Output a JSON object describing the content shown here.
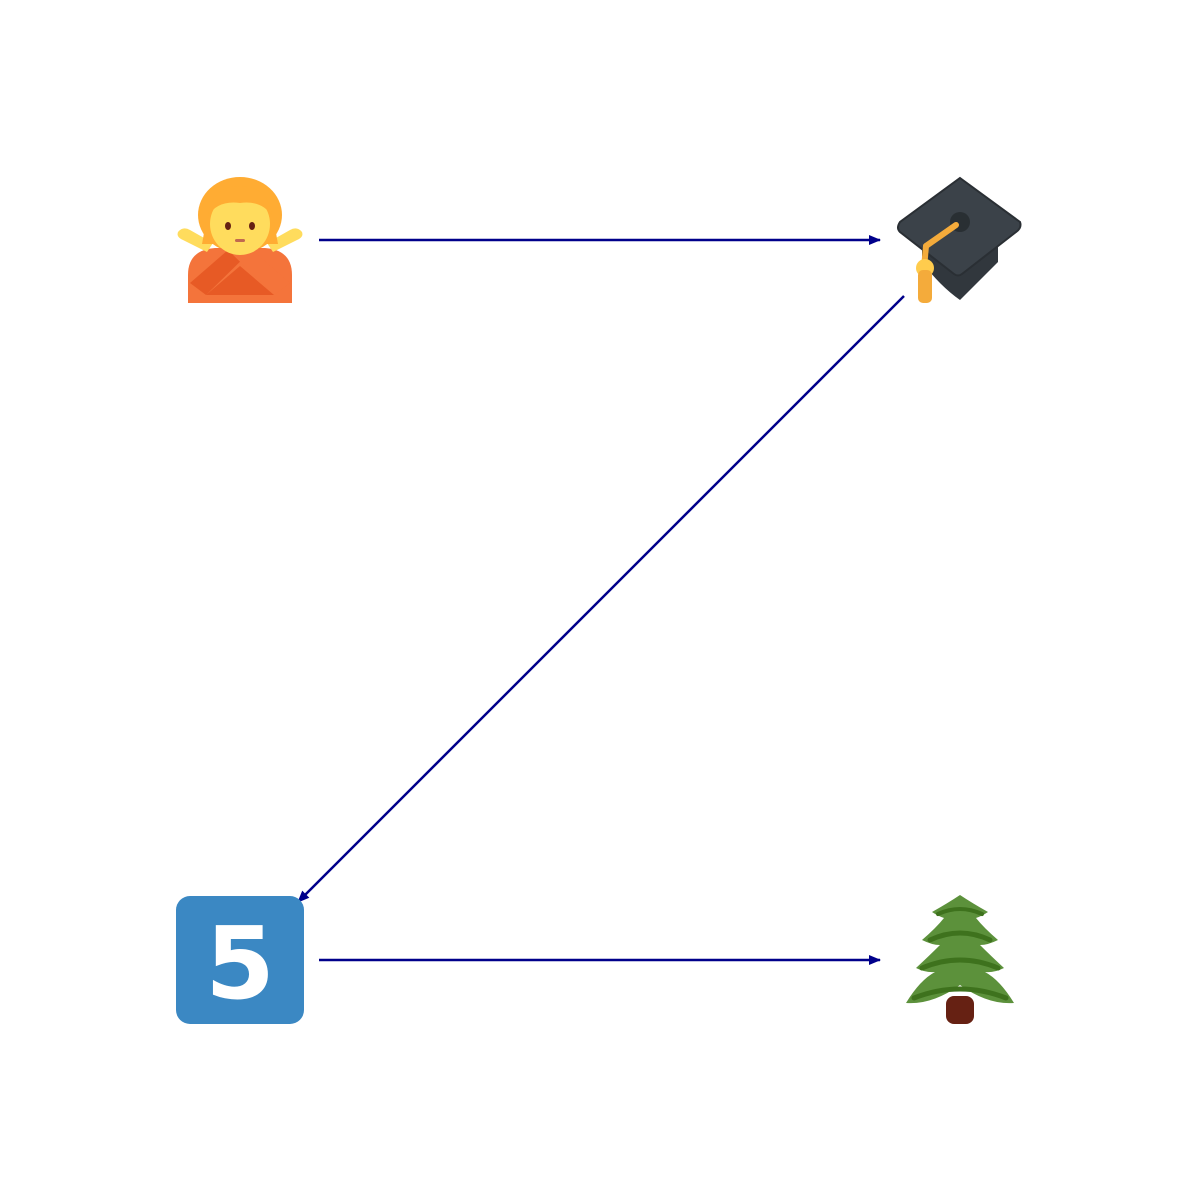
{
  "diagram": {
    "nodes": [
      {
        "id": "no-gesture",
        "icon": "person-gesturing-no-icon"
      },
      {
        "id": "graduation-cap",
        "icon": "graduation-cap-icon"
      },
      {
        "id": "keycap-five",
        "icon": "keycap-5-icon",
        "label": "5"
      },
      {
        "id": "evergreen-tree",
        "icon": "evergreen-tree-icon"
      }
    ],
    "edges": [
      {
        "from": "no-gesture",
        "to": "graduation-cap"
      },
      {
        "from": "graduation-cap",
        "to": "keycap-five"
      },
      {
        "from": "keycap-five",
        "to": "evergreen-tree"
      }
    ],
    "colors": {
      "edge": "#00008b",
      "keycap": "#3b88c3",
      "skin": "#ffdc5d",
      "hair": "#ffac33",
      "shirt": "#f4743b",
      "shirt_dark": "#e75a25",
      "cap": "#31373d",
      "cap_top": "#3b4249",
      "tassel": "#f4ab3b",
      "tree_dark": "#3e721d",
      "tree_light": "#5c913b",
      "trunk": "#662113"
    }
  }
}
